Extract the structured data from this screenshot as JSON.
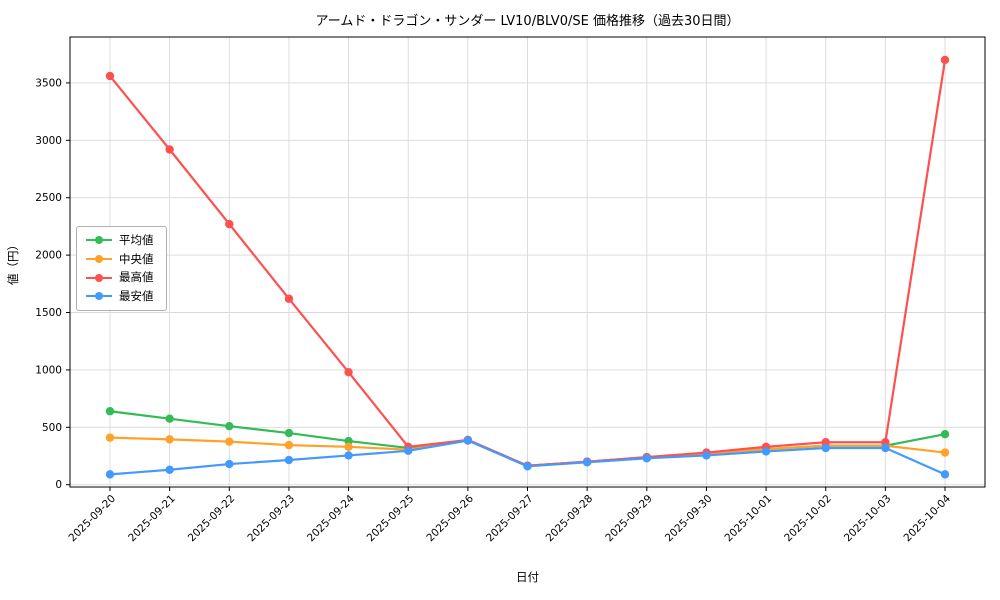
{
  "chart_data": {
    "type": "line",
    "title": "アームド・ドラゴン・サンダー LV10/BLV0/SE 価格推移（過去30日間）",
    "xlabel": "日付",
    "ylabel": "値（円）",
    "x": [
      "2025-09-20",
      "2025-09-21",
      "2025-09-22",
      "2025-09-23",
      "2025-09-24",
      "2025-09-25",
      "2025-09-26",
      "2025-09-27",
      "2025-09-28",
      "2025-09-29",
      "2025-09-30",
      "2025-10-01",
      "2025-10-02",
      "2025-10-03",
      "2025-10-04"
    ],
    "series": [
      {
        "name": "平均値",
        "color": "#33bb55",
        "values": [
          640,
          575,
          510,
          450,
          380,
          320,
          390,
          165,
          200,
          240,
          270,
          310,
          340,
          340,
          440
        ]
      },
      {
        "name": "中央値",
        "color": "#ffa22a",
        "values": [
          410,
          395,
          375,
          345,
          330,
          305,
          385,
          165,
          200,
          235,
          270,
          310,
          340,
          340,
          280
        ]
      },
      {
        "name": "最高値",
        "color": "#ff5050",
        "values": [
          3560,
          2920,
          2270,
          1620,
          980,
          330,
          390,
          165,
          200,
          240,
          280,
          330,
          370,
          370,
          3700
        ]
      },
      {
        "name": "最安値",
        "color": "#4499ff",
        "values": [
          90,
          130,
          180,
          215,
          255,
          295,
          385,
          160,
          195,
          230,
          255,
          290,
          320,
          320,
          90
        ]
      }
    ],
    "yticks": [
      0,
      500,
      1000,
      1500,
      2000,
      2500,
      3000,
      3500
    ],
    "ylim": [
      -20,
      3900
    ],
    "grid": true,
    "legend_position": "center-left"
  }
}
